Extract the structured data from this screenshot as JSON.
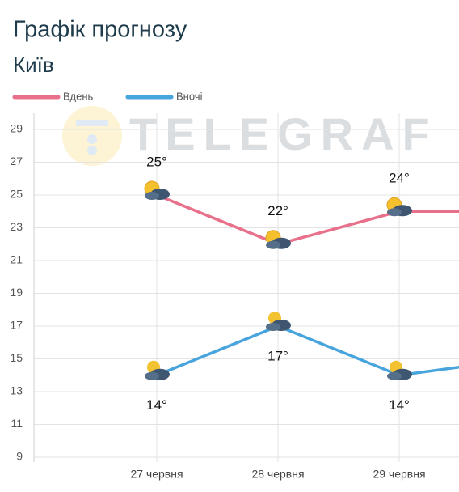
{
  "chart_data": {
    "type": "line",
    "title": "Графік прогнозу",
    "subtitle": "Київ",
    "watermark": "TELEGRAF",
    "categories": [
      "27 червня",
      "28 червня",
      "29 червня",
      null
    ],
    "series": [
      {
        "name": "Вдень",
        "color": "#e8708a",
        "values": [
          25,
          22,
          24,
          24
        ],
        "value_labels": [
          "25°",
          "22°",
          "24°",
          null
        ]
      },
      {
        "name": "Вночі",
        "color": "#47a4dc",
        "values": [
          14,
          17,
          14,
          15
        ],
        "value_labels": [
          "14°",
          "17°",
          "14°",
          null
        ]
      }
    ],
    "ylim": [
      9,
      29
    ],
    "yticks": [
      9,
      11,
      13,
      15,
      17,
      19,
      21,
      23,
      25,
      27,
      29
    ],
    "grid": true
  }
}
